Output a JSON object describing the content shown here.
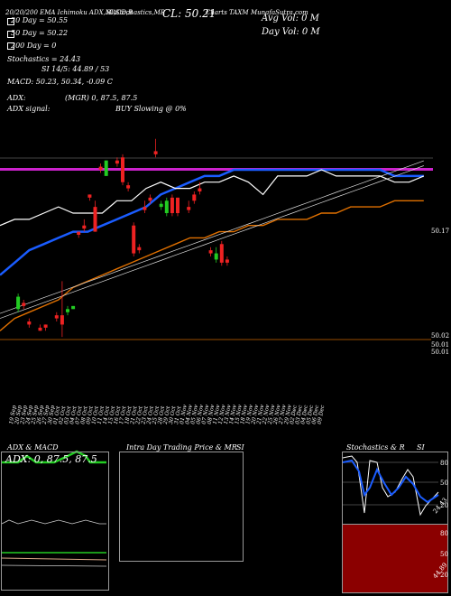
{
  "header": {
    "ticker_line": "20/20/200 EMA Ichimoku ADX,MACD,B",
    "stoch_line": "SI,Stochastics,MR",
    "close": "CL: 50.21",
    "chart_line": "Charts TAXM",
    "source": "MunafaSutra.com",
    "avg_vol": "Avg Vol: 0  M",
    "day_vol": "Day Vol: 0  M",
    "ema20": "20 Day = 50.55",
    "ema50": "50 Day = 50.22",
    "ema200": "200 Day = 0",
    "stochastics": "Stochastics = 24.43",
    "si": "SI 14/5: 44.89 / 53",
    "macd": "MACD: 50.23, 50.34, -0.09 C",
    "adx_label": "ADX:",
    "adx_values": "(MGR) 0, 87.5, 87.5",
    "adx_signal_label": "ADX signal:",
    "adx_signal": "BUY Slowing @ 0%"
  },
  "price_labels": {
    "far_right_top": "50.17",
    "far_right_2": "50.02",
    "far_right_3": "50.01",
    "far_right_4": "50.01"
  },
  "colors": {
    "bull": "#22cc22",
    "bear": "#ee2222",
    "ema_blue": "#1a5cff",
    "ema_orange": "#e07000",
    "magenta": "#cc22cc",
    "white": "#ffffff"
  },
  "chart_data": {
    "type": "candlestick",
    "x": [
      "19 Sep",
      "20 Sep",
      "23 Sep",
      "24 Sep",
      "25 Sep",
      "26 Sep",
      "27 Sep",
      "30 Sep",
      "01 Oct",
      "02 Oct",
      "03 Oct",
      "04 Oct",
      "07 Oct",
      "08 Oct",
      "09 Oct",
      "10 Oct",
      "11 Oct",
      "14 Oct",
      "15 Oct",
      "16 Oct",
      "17 Oct",
      "18 Oct",
      "21 Oct",
      "22 Oct",
      "23 Oct",
      "24 Oct",
      "25 Oct",
      "28 Oct",
      "29 Oct",
      "30 Oct",
      "31 Oct",
      "01 Nov",
      "04 Nov",
      "05 Nov",
      "06 Nov",
      "07 Nov",
      "08 Nov",
      "11 Nov",
      "12 Nov",
      "13 Nov",
      "14 Nov",
      "15 Nov",
      "18 Nov",
      "19 Nov",
      "20 Nov",
      "21 Nov",
      "22 Nov",
      "25 Nov",
      "26 Nov",
      "27 Nov",
      "29 Nov",
      "02 Dec",
      "03 Dec",
      "04 Dec",
      "05 Dec",
      "06 Dec",
      "09 Dec"
    ],
    "candles": [
      {
        "x": "20 Sep",
        "o": 49.985,
        "c": 50.005,
        "h": 50.01,
        "l": 49.98
      },
      {
        "x": "23 Sep",
        "o": 49.995,
        "c": 49.99,
        "h": 50.0,
        "l": 49.985
      },
      {
        "x": "24 Sep",
        "o": 49.965,
        "c": 49.96,
        "h": 49.97,
        "l": 49.955
      },
      {
        "x": "26 Sep",
        "o": 49.955,
        "c": 49.95,
        "h": 49.96,
        "l": 49.95
      },
      {
        "x": "27 Sep",
        "o": 49.96,
        "c": 49.955,
        "h": 49.96,
        "l": 49.95
      },
      {
        "x": "01 Oct",
        "o": 49.975,
        "c": 49.97,
        "h": 49.98,
        "l": 49.965
      },
      {
        "x": "02 Oct",
        "o": 49.975,
        "c": 49.96,
        "h": 50.03,
        "l": 49.94
      },
      {
        "x": "03 Oct",
        "o": 49.98,
        "c": 49.985,
        "h": 49.99,
        "l": 49.975
      },
      {
        "x": "04 Oct",
        "o": 49.985,
        "c": 49.99,
        "h": 49.99,
        "l": 49.985
      },
      {
        "x": "07 Oct",
        "o": 50.11,
        "c": 50.105,
        "h": 50.11,
        "l": 50.1
      },
      {
        "x": "08 Oct",
        "o": 50.12,
        "c": 50.115,
        "h": 50.13,
        "l": 50.11
      },
      {
        "x": "09 Oct",
        "o": 50.17,
        "c": 50.165,
        "h": 50.17,
        "l": 50.16
      },
      {
        "x": "10 Oct",
        "o": 50.15,
        "c": 50.11,
        "h": 50.16,
        "l": 50.11
      },
      {
        "x": "11 Oct",
        "o": 50.215,
        "c": 50.21,
        "h": 50.22,
        "l": 50.205
      },
      {
        "x": "14 Oct",
        "o": 50.2,
        "c": 50.225,
        "h": 50.225,
        "l": 50.2
      },
      {
        "x": "16 Oct",
        "o": 50.225,
        "c": 50.22,
        "h": 50.23,
        "l": 50.215
      },
      {
        "x": "17 Oct",
        "o": 50.23,
        "c": 50.19,
        "h": 50.235,
        "l": 50.185
      },
      {
        "x": "18 Oct",
        "o": 50.185,
        "c": 50.18,
        "h": 50.19,
        "l": 50.175
      },
      {
        "x": "21 Oct",
        "o": 50.12,
        "c": 50.075,
        "h": 50.125,
        "l": 50.07
      },
      {
        "x": "22 Oct",
        "o": 50.085,
        "c": 50.08,
        "h": 50.09,
        "l": 50.075
      },
      {
        "x": "23 Oct",
        "o": 50.15,
        "c": 50.145,
        "h": 50.16,
        "l": 50.14
      },
      {
        "x": "24 Oct",
        "o": 50.165,
        "c": 50.16,
        "h": 50.17,
        "l": 50.155
      },
      {
        "x": "25 Oct",
        "o": 50.24,
        "c": 50.235,
        "h": 50.26,
        "l": 50.23
      },
      {
        "x": "28 Oct",
        "o": 50.15,
        "c": 50.155,
        "h": 50.16,
        "l": 50.145
      },
      {
        "x": "29 Oct",
        "o": 50.14,
        "c": 50.16,
        "h": 50.165,
        "l": 50.135
      },
      {
        "x": "30 Oct",
        "o": 50.165,
        "c": 50.14,
        "h": 50.17,
        "l": 50.135
      },
      {
        "x": "31 Oct",
        "o": 50.165,
        "c": 50.14,
        "h": 50.165,
        "l": 50.135
      },
      {
        "x": "04 Nov",
        "o": 50.15,
        "c": 50.145,
        "h": 50.16,
        "l": 50.14
      },
      {
        "x": "05 Nov",
        "o": 50.17,
        "c": 50.16,
        "h": 50.175,
        "l": 50.155
      },
      {
        "x": "06 Nov",
        "o": 50.18,
        "c": 50.175,
        "h": 50.19,
        "l": 50.17
      },
      {
        "x": "08 Nov",
        "o": 50.08,
        "c": 50.075,
        "h": 50.085,
        "l": 50.07
      },
      {
        "x": "11 Nov",
        "o": 50.065,
        "c": 50.075,
        "h": 50.085,
        "l": 50.06
      },
      {
        "x": "12 Nov",
        "o": 50.09,
        "c": 50.06,
        "h": 50.095,
        "l": 50.055
      },
      {
        "x": "13 Nov",
        "o": 50.065,
        "c": 50.06,
        "h": 50.07,
        "l": 50.055
      }
    ],
    "ema20": [
      50.12,
      50.13,
      50.13,
      50.14,
      50.15,
      50.14,
      50.14,
      50.14,
      50.16,
      50.16,
      50.18,
      50.19,
      50.18,
      50.18,
      50.19,
      50.19,
      50.2,
      50.19,
      50.17,
      50.2,
      50.2,
      50.2,
      50.21,
      50.2,
      50.2,
      50.2,
      50.2,
      50.19,
      50.19,
      50.2
    ],
    "ema_blue": [
      50.04,
      50.06,
      50.08,
      50.09,
      50.1,
      50.11,
      50.11,
      50.12,
      50.13,
      50.14,
      50.15,
      50.17,
      50.18,
      50.19,
      50.2,
      50.2,
      50.21,
      50.21,
      50.21,
      50.21,
      50.21,
      50.21,
      50.21,
      50.21,
      50.21,
      50.21,
      50.21,
      50.2,
      50.2,
      50.2
    ],
    "ema_orange": [
      49.95,
      49.97,
      49.98,
      49.99,
      50.0,
      50.02,
      50.03,
      50.04,
      50.05,
      50.06,
      50.07,
      50.08,
      50.09,
      50.1,
      50.1,
      50.11,
      50.11,
      50.12,
      50.12,
      50.13,
      50.13,
      50.13,
      50.14,
      50.14,
      50.15,
      50.15,
      50.15,
      50.16,
      50.16,
      50.16
    ]
  },
  "panels": {
    "adx_macd_title": "ADX & MACD",
    "adx_overlay": "ADX: 0, 87.5, 87.5",
    "intraday_title": "Intra Day Trading Price  & MR",
    "intraday_si": "SI",
    "stoch_title": "Stochastics & R",
    "stoch_si": "SI",
    "stoch_levels": [
      "80",
      "50",
      "20"
    ],
    "stoch_value": "24.43",
    "mr_levels": [
      "80",
      "50",
      "20"
    ],
    "mr_value": "44.89"
  }
}
